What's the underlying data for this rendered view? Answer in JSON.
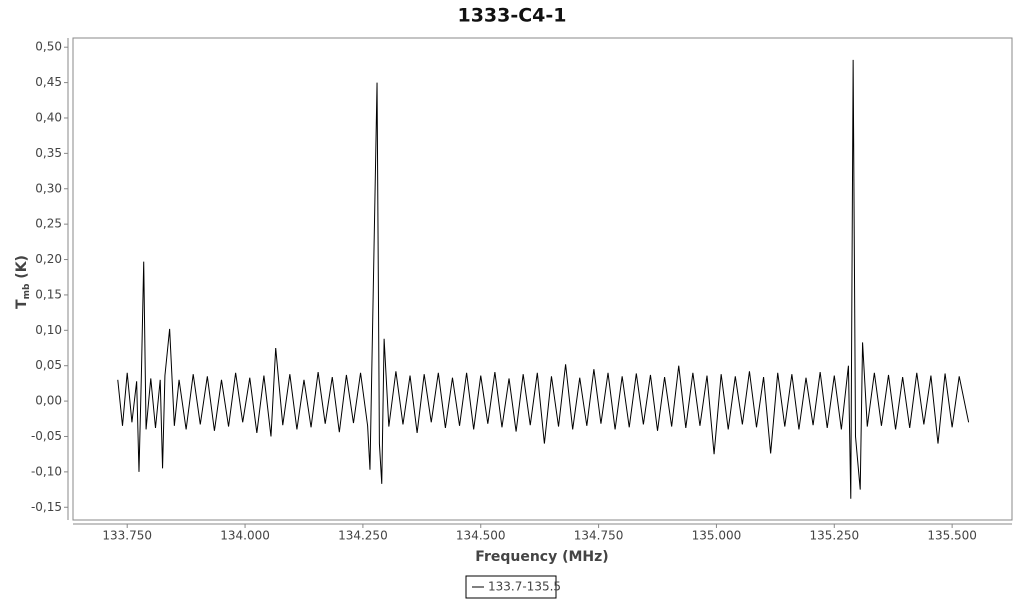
{
  "chart_data": {
    "type": "line",
    "title": "1333-C4-1",
    "xlabel": "Frequency (MHz)",
    "ylabel": [
      "T",
      "mb",
      " (K)"
    ],
    "xlim": [
      133.635,
      135.627
    ],
    "ylim": [
      -0.168,
      0.513
    ],
    "xticks": [
      {
        "value": 133.75,
        "label": "133.750"
      },
      {
        "value": 134.0,
        "label": "134.000"
      },
      {
        "value": 134.25,
        "label": "134.250"
      },
      {
        "value": 134.5,
        "label": "134.500"
      },
      {
        "value": 134.75,
        "label": "134.750"
      },
      {
        "value": 135.0,
        "label": "135.000"
      },
      {
        "value": 135.25,
        "label": "135.250"
      },
      {
        "value": 135.5,
        "label": "135.500"
      }
    ],
    "yticks": [
      {
        "value": 0.5,
        "label": "0,50"
      },
      {
        "value": 0.45,
        "label": "0,45"
      },
      {
        "value": 0.4,
        "label": "0,40"
      },
      {
        "value": 0.35,
        "label": "0,35"
      },
      {
        "value": 0.3,
        "label": "0,30"
      },
      {
        "value": 0.25,
        "label": "0,25"
      },
      {
        "value": 0.2,
        "label": "0,20"
      },
      {
        "value": 0.15,
        "label": "0,15"
      },
      {
        "value": 0.1,
        "label": "0,10"
      },
      {
        "value": 0.05,
        "label": "0,05"
      },
      {
        "value": 0,
        "label": "0,00"
      },
      {
        "value": -0.05,
        "label": "-0,05"
      },
      {
        "value": -0.1,
        "label": "-0,10"
      },
      {
        "value": -0.15,
        "label": "-0,15"
      }
    ],
    "grid": false,
    "legend": "bottom",
    "x": [
      133.73,
      133.74,
      133.75,
      133.76,
      133.77,
      133.775,
      133.78,
      133.785,
      133.79,
      133.8,
      133.81,
      133.82,
      133.825,
      133.83,
      133.84,
      133.85,
      133.86,
      133.875,
      133.89,
      133.905,
      133.92,
      133.935,
      133.95,
      133.965,
      133.98,
      133.995,
      134.01,
      134.025,
      134.04,
      134.055,
      134.065,
      134.08,
      134.095,
      134.11,
      134.125,
      134.14,
      134.155,
      134.17,
      134.185,
      134.2,
      134.215,
      134.23,
      134.245,
      134.26,
      134.265,
      134.27,
      134.28,
      134.285,
      134.29,
      134.295,
      134.305,
      134.32,
      134.335,
      134.35,
      134.365,
      134.38,
      134.395,
      134.41,
      134.425,
      134.44,
      134.455,
      134.47,
      134.485,
      134.5,
      134.515,
      134.53,
      134.545,
      134.56,
      134.575,
      134.59,
      134.605,
      134.62,
      134.635,
      134.65,
      134.665,
      134.68,
      134.695,
      134.71,
      134.725,
      134.74,
      134.755,
      134.77,
      134.785,
      134.8,
      134.815,
      134.83,
      134.845,
      134.86,
      134.875,
      134.89,
      134.905,
      134.92,
      134.935,
      134.95,
      134.965,
      134.98,
      134.995,
      135.01,
      135.025,
      135.04,
      135.055,
      135.07,
      135.085,
      135.1,
      135.115,
      135.13,
      135.145,
      135.16,
      135.175,
      135.19,
      135.205,
      135.22,
      135.235,
      135.25,
      135.265,
      135.28,
      135.285,
      135.29,
      135.295,
      135.305,
      135.31,
      135.32,
      135.335,
      135.35,
      135.365,
      135.38,
      135.395,
      135.41,
      135.425,
      135.44,
      135.455,
      135.47,
      135.485,
      135.5,
      135.515,
      135.535
    ],
    "series": [
      {
        "name": "133.7-135.5",
        "color": "#000000",
        "values": [
          0.03,
          -0.035,
          0.04,
          -0.03,
          0.028,
          -0.1,
          0.035,
          0.197,
          -0.04,
          0.032,
          -0.038,
          0.03,
          -0.095,
          0.036,
          0.102,
          -0.035,
          0.03,
          -0.04,
          0.038,
          -0.033,
          0.035,
          -0.042,
          0.03,
          -0.036,
          0.04,
          -0.03,
          0.033,
          -0.045,
          0.036,
          -0.05,
          0.075,
          -0.034,
          0.038,
          -0.04,
          0.03,
          -0.037,
          0.041,
          -0.032,
          0.034,
          -0.044,
          0.037,
          -0.031,
          0.04,
          -0.035,
          -0.097,
          0.085,
          0.45,
          -0.06,
          -0.117,
          0.088,
          -0.036,
          0.042,
          -0.033,
          0.036,
          -0.045,
          0.038,
          -0.03,
          0.04,
          -0.038,
          0.033,
          -0.035,
          0.04,
          -0.04,
          0.036,
          -0.032,
          0.041,
          -0.037,
          0.032,
          -0.043,
          0.038,
          -0.034,
          0.04,
          -0.06,
          0.035,
          -0.036,
          0.052,
          -0.04,
          0.033,
          -0.035,
          0.045,
          -0.032,
          0.04,
          -0.04,
          0.035,
          -0.037,
          0.039,
          -0.033,
          0.037,
          -0.042,
          0.034,
          -0.036,
          0.05,
          -0.038,
          0.04,
          -0.035,
          0.036,
          -0.075,
          0.038,
          -0.04,
          0.035,
          -0.033,
          0.042,
          -0.037,
          0.034,
          -0.074,
          0.04,
          -0.036,
          0.038,
          -0.04,
          0.033,
          -0.034,
          0.041,
          -0.038,
          0.036,
          -0.04,
          0.05,
          -0.138,
          0.482,
          -0.05,
          -0.125,
          0.083,
          -0.036,
          0.04,
          -0.035,
          0.037,
          -0.04,
          0.034,
          -0.038,
          0.04,
          -0.033,
          0.036,
          -0.06,
          0.039,
          -0.037,
          0.035,
          -0.03
        ]
      }
    ]
  }
}
